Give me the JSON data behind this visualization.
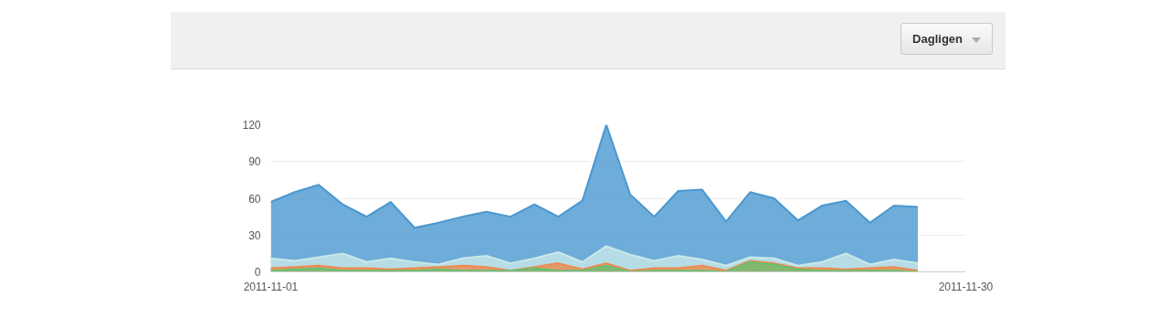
{
  "chart_data": {
    "type": "area",
    "annotations": [
      "Dagligen"
    ],
    "x": [
      "2011-11-01",
      "2011-11-02",
      "2011-11-03",
      "2011-11-04",
      "2011-11-05",
      "2011-11-06",
      "2011-11-07",
      "2011-11-08",
      "2011-11-09",
      "2011-11-10",
      "2011-11-11",
      "2011-11-12",
      "2011-11-13",
      "2011-11-14",
      "2011-11-15",
      "2011-11-16",
      "2011-11-17",
      "2011-11-18",
      "2011-11-19",
      "2011-11-20",
      "2011-11-21",
      "2011-11-22",
      "2011-11-23",
      "2011-11-24",
      "2011-11-25",
      "2011-11-26",
      "2011-11-27",
      "2011-11-28"
    ],
    "series": [
      {
        "color": "#4a97d0",
        "values": [
          57,
          65,
          71,
          55,
          45,
          57,
          36,
          40,
          45,
          49,
          45,
          55,
          45,
          58,
          120,
          63,
          45,
          66,
          67,
          41,
          65,
          60,
          42,
          54,
          58,
          40,
          54,
          53
        ]
      },
      {
        "color": "#c8e9e8",
        "values": [
          11,
          9,
          12,
          15,
          8,
          11,
          8,
          6,
          11,
          13,
          7,
          11,
          16,
          8,
          21,
          14,
          9,
          13,
          10,
          5,
          12,
          11,
          5,
          8,
          15,
          6,
          10,
          7
        ]
      },
      {
        "color": "#ee8a4f",
        "values": [
          3,
          4,
          5,
          3,
          3,
          2,
          3,
          4,
          5,
          4,
          1,
          4,
          7,
          2,
          7,
          1,
          3,
          3,
          5,
          1,
          9,
          7,
          3,
          3,
          2,
          3,
          4,
          1
        ]
      },
      {
        "color": "#6cbf6f",
        "values": [
          1,
          2,
          3,
          1,
          1,
          1,
          1,
          2,
          1,
          1,
          1,
          3,
          1,
          1,
          5,
          0,
          1,
          1,
          1,
          0,
          8,
          6,
          2,
          1,
          1,
          1,
          1,
          0
        ]
      }
    ],
    "xlim": [
      "2011-11-01",
      "2011-11-30"
    ],
    "xticks": [
      "2011-11-01",
      "2011-11-30"
    ],
    "ylim": [
      0,
      120
    ],
    "yticks": [
      0,
      30,
      60,
      90,
      120
    ],
    "grid": "y"
  }
}
